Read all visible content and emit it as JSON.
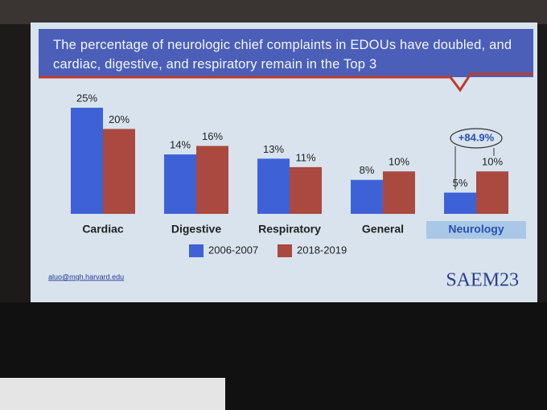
{
  "chart_data": {
    "type": "bar",
    "title": "The percentage of neurologic chief complaints in EDOUs have doubled, and cardiac, digestive, and respiratory remain in the Top 3",
    "categories": [
      "Cardiac",
      "Digestive",
      "Respiratory",
      "General",
      "Neurology"
    ],
    "series": [
      {
        "name": "2006-2007",
        "color": "#3e62d6",
        "values": [
          25,
          14,
          13,
          8,
          5
        ],
        "value_labels": [
          "25%",
          "14%",
          "13%",
          "8%",
          "5%"
        ]
      },
      {
        "name": "2018-2019",
        "color": "#a9493f",
        "values": [
          20,
          16,
          11,
          10,
          10
        ],
        "value_labels": [
          "20%",
          "16%",
          "11%",
          "10%",
          "10%"
        ]
      }
    ],
    "annotation": "+84.9%",
    "legend": "bottom"
  },
  "footer": {
    "email": "aluo@mgh.harvard.edu",
    "logo": "SAEM23"
  }
}
